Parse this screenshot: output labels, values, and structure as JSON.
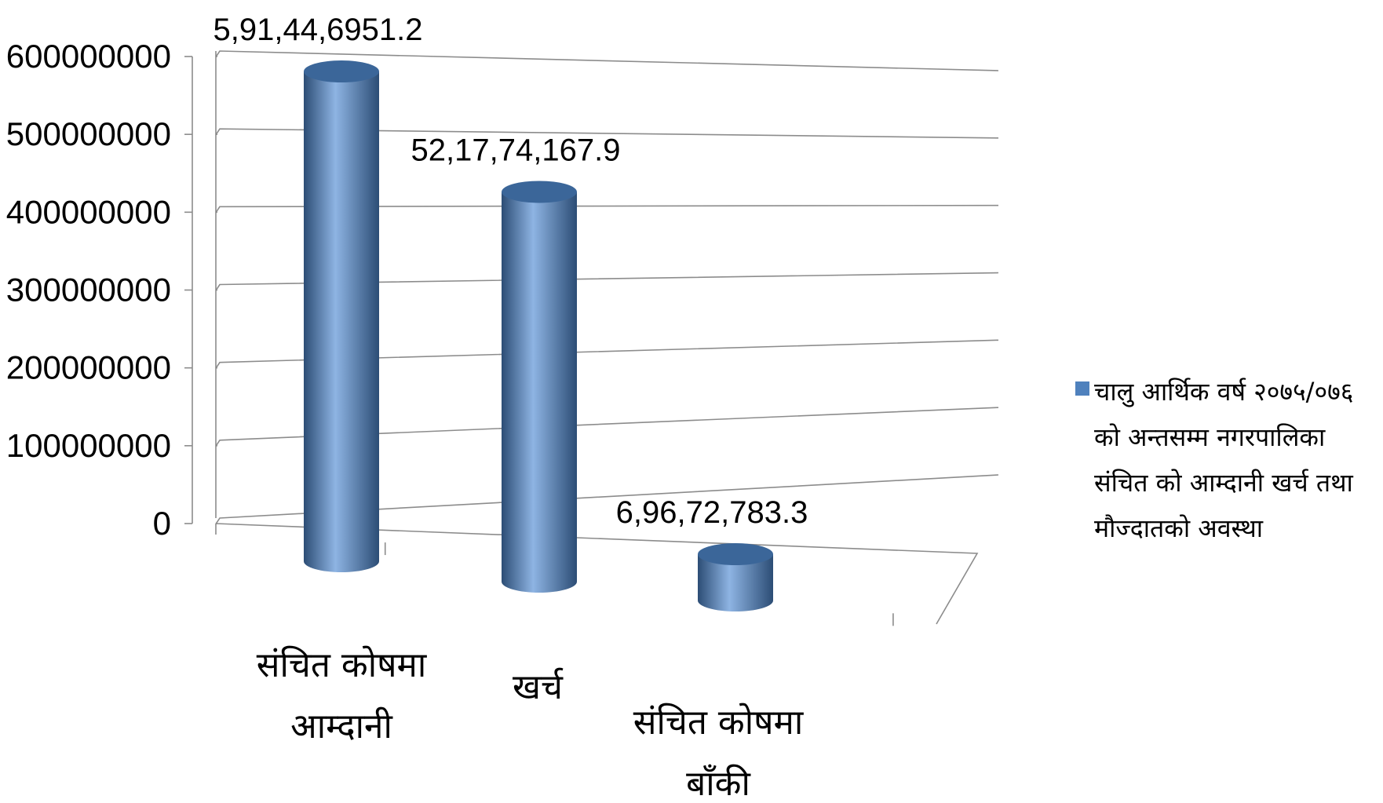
{
  "chart_data": {
    "type": "bar",
    "style": "3d-cylinder",
    "categories": [
      "संचित कोषमा आम्दानी",
      "खर्च",
      "संचित कोषमा बाँकी"
    ],
    "category_lines": [
      [
        "संचित  कोषमा",
        "आम्दानी"
      ],
      [
        "खर्च"
      ],
      [
        "संचित  कोषमा",
        "बाँकी"
      ]
    ],
    "series": [
      {
        "name": "चालु आर्थिक वर्ष २०७५/०७६ को अन्तसम्म नगरपालिका संचित को आम्दानी खर्च तथा मौज्दातको अवस्था",
        "values": [
          591446951.2,
          521774167.9,
          69672783.3
        ]
      }
    ],
    "data_labels": [
      "5,91,44,6951.2",
      "52,17,74,167.9",
      "6,96,72,783.3"
    ],
    "y_ticks": [
      "0",
      "100000000",
      "200000000",
      "300000000",
      "400000000",
      "500000000",
      "600000000"
    ],
    "ylim": [
      0,
      600000000
    ],
    "grid": true,
    "legend_position": "right",
    "title": "",
    "xlabel": "",
    "ylabel": ""
  },
  "legend": {
    "text": "चालु आर्थिक वर्ष २०७५/०७६ को अन्तसम्म नगरपालिका संचित को आम्दानी खर्च तथा मौज्दातको अवस्था"
  },
  "colors": {
    "bar_body": "#4f81bd",
    "bar_dark": "#2c4d75",
    "bar_light": "#8eb4e3",
    "bar_top": "#3b6699",
    "grid": "#8c8c8c",
    "axis": "#8c8c8c"
  }
}
